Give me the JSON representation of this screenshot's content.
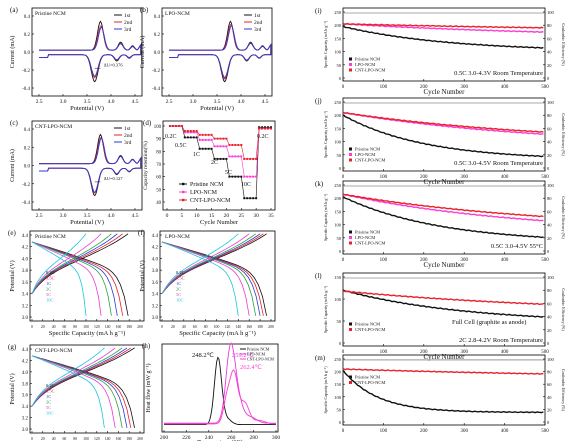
{
  "colors": {
    "black": "#111111",
    "red": "#e8212b",
    "pink": "#ff3bd2",
    "blue": "#2b3bd6",
    "cyan": "#19c7d8",
    "magenta": "#e83cd6",
    "green": "#2aa23c",
    "orange": "#ff8f00",
    "purple": "#8a2be2",
    "gray": "#888888"
  },
  "panels": {
    "a": {
      "label": "(a)",
      "title": "Pristine NCM",
      "ylabel": "Current (mA)",
      "xlabel": "Potential (V)",
      "xticks": [
        "2.5",
        "3.0",
        "3.5",
        "4.0",
        "4.5"
      ],
      "yticks": [
        "0.4",
        "0.2",
        "0.0",
        "-0.2",
        "-0.4"
      ],
      "legend": [
        "1st",
        "2nd",
        "3rd"
      ],
      "ann": "ΔU=0.376"
    },
    "b": {
      "label": "(b)",
      "title": "LPO-NCM",
      "ylabel": "Current (mA)",
      "xlabel": "Potential (V)",
      "xticks": [
        "2.5",
        "3.0",
        "3.5",
        "4.0",
        "4.5"
      ],
      "yticks": [
        "0.4",
        "0.2",
        "0.0",
        "-0.2",
        "-0.4"
      ],
      "legend": [
        "1st",
        "2nd",
        "3rd"
      ],
      "ann": ""
    },
    "c": {
      "label": "(c)",
      "title": "CNT-LPO-NCM",
      "ylabel": "Current (mA)",
      "xlabel": "Potential (V)",
      "xticks": [
        "2.5",
        "3.0",
        "3.5",
        "4.0",
        "4.5"
      ],
      "yticks": [
        "0.4",
        "0.2",
        "0.0",
        "-0.2",
        "-0.4"
      ],
      "legend": [
        "1st",
        "2nd",
        "3rd"
      ],
      "ann": "ΔU=0.127"
    },
    "d": {
      "label": "(d)",
      "ylabel": "Capacity retention(%)",
      "xlabel": "Cycle Number",
      "xticks": [
        "0",
        "5",
        "10",
        "15",
        "20",
        "25",
        "30",
        "35"
      ],
      "yticks": [
        "100",
        "90",
        "80",
        "70",
        "60",
        "50",
        "40"
      ],
      "rates": [
        "0.2C",
        "0.5C",
        "1C",
        "2C",
        "5C",
        "10C",
        "0.2C"
      ],
      "legend": [
        "Pristine NCM",
        "LPO-NCM",
        "CNT-LPO-NCM"
      ]
    },
    "e": {
      "label": "(e)",
      "title": "Pristine NCM",
      "ylabel": "Potential (V)",
      "xlabel": "Specific Capacity (mA h g⁻¹)",
      "xticks": [
        "0",
        "20",
        "40",
        "60",
        "80",
        "100",
        "120",
        "140",
        "160",
        "180",
        "200"
      ],
      "yticks": [
        "4.4",
        "4.2",
        "4.0",
        "3.8",
        "3.6",
        "3.4",
        "3.2",
        "3.0"
      ],
      "rates": [
        "0.2C",
        "0.5C",
        "1C",
        "2C",
        "5C",
        "10C"
      ]
    },
    "f": {
      "label": "(f)",
      "title": "LPO-NCM",
      "ylabel": "Potential (V)",
      "xlabel": "Specific Capacity  (mA h g⁻¹)",
      "xticks": [
        "0",
        "20",
        "40",
        "60",
        "80",
        "100",
        "120",
        "140",
        "160",
        "180",
        "200"
      ],
      "yticks": [
        "4.4",
        "4.2",
        "4.0",
        "3.8",
        "3.6",
        "3.4",
        "3.2",
        "3.0"
      ],
      "rates": [
        "0.2C",
        "0.5C",
        "1C",
        "2C",
        "5C",
        "10C"
      ]
    },
    "g": {
      "label": "(g)",
      "title": "CNT-LPO-NCM",
      "ylabel": "Potential (V)",
      "xlabel": "Specific Capacity (mA h g⁻¹)",
      "xticks": [
        "0",
        "20",
        "40",
        "60",
        "80",
        "100",
        "120",
        "140",
        "160",
        "180",
        "200"
      ],
      "yticks": [
        "4.4",
        "4.2",
        "4.0",
        "3.8",
        "3.6",
        "3.4",
        "3.2",
        "3.0"
      ],
      "rates": [
        "0.2C",
        "0.5C",
        "1C",
        "2C",
        "5C",
        "10C"
      ]
    },
    "h": {
      "label": "(h)",
      "ylabel": "Heat flow (mW g⁻¹)",
      "xlabel": "Temperature (°C)",
      "xticks": [
        "200",
        "220",
        "240",
        "260",
        "280",
        "300"
      ],
      "legend": [
        "Pristine NCM",
        "LPO-NCM",
        "CNT-LPO-NCM"
      ],
      "peaks": [
        "248.2℃",
        "259.2℃",
        "262.4℃"
      ]
    },
    "i": {
      "label": "(i)",
      "ylabel": "Specific Capacity (mA h g⁻¹)",
      "y2label": "Coulombic Efficiency (%)",
      "xlabel": "Cycle Number",
      "xticks": [
        "0",
        "100",
        "200",
        "300",
        "400",
        "500"
      ],
      "yticks": [
        "250",
        "200",
        "150",
        "100",
        "50",
        "0"
      ],
      "y2ticks": [
        "100",
        "80",
        "60",
        "40",
        "20",
        "0"
      ],
      "legend": [
        "Pristine NCM",
        "LPO-NCM",
        "CNT-LPO-NCM"
      ],
      "cond": "0.5C   3.0-4.3V   Room Temperature"
    },
    "j": {
      "label": "(j)",
      "ylabel": "Specific Capacity (mA h g⁻¹)",
      "y2label": "Coulombic Efficiency (%)",
      "xlabel": "Cycle Number",
      "xticks": [
        "0",
        "100",
        "200",
        "300",
        "400",
        "500"
      ],
      "yticks": [
        "250",
        "200",
        "150",
        "100",
        "50",
        "0"
      ],
      "y2ticks": [
        "100",
        "80",
        "60",
        "40",
        "20",
        "0"
      ],
      "legend": [
        "Pristine NCM",
        "LPO-NCM",
        "CNT-LPO-NCM"
      ],
      "cond": "0.5C   3.0-4.5V   Room Temperature"
    },
    "k": {
      "label": "(k)",
      "ylabel": "Specific Capacity (mA h g⁻¹)",
      "y2label": "Coulombic Efficiency (%)",
      "xlabel": "Cycle Number",
      "xticks": [
        "0",
        "100",
        "200",
        "300",
        "400",
        "500"
      ],
      "yticks": [
        "250",
        "200",
        "150",
        "100",
        "50",
        "0"
      ],
      "y2ticks": [
        "100",
        "80",
        "60",
        "40",
        "20",
        "0"
      ],
      "legend": [
        "Pristine NCM",
        "LPO-NCM",
        "CNT-LPO-NCM"
      ],
      "cond": "0.5C   3.0-4.5V   55°C"
    },
    "l": {
      "label": "(l)",
      "ylabel": "Specific Capacity (mA h g⁻¹)",
      "y2label": "Coulombic Efficiency (%)",
      "xlabel": "Cycle Number",
      "xticks": [
        "0",
        "100",
        "200",
        "300",
        "400",
        "500"
      ],
      "yticks": [
        "150",
        "100",
        "50",
        "0"
      ],
      "y2ticks": [
        "100",
        "80",
        "60",
        "40",
        "20",
        "0"
      ],
      "legend": [
        "Pristine NCM",
        "CNT-LPO-NCM"
      ],
      "cond": "Full Cell (graphite as anode)",
      "cond2": "2C   2.8-4.2V   Room Temperature"
    },
    "m": {
      "label": "(m)",
      "ylabel": "Specific Capacity (mA h g⁻¹)",
      "y2label": "Coulombic Efficiency (%)",
      "xlabel": "",
      "xticks": [
        "0",
        "100",
        "200",
        "300",
        "400",
        "500"
      ],
      "yticks": [
        "250",
        "200",
        "150",
        "100",
        "50",
        "0"
      ],
      "y2ticks": [
        "100",
        "80",
        "60",
        "40",
        "20",
        "0"
      ],
      "legend": [
        "Pristine NCM",
        "CNT-LPO-NCM"
      ]
    }
  }
}
